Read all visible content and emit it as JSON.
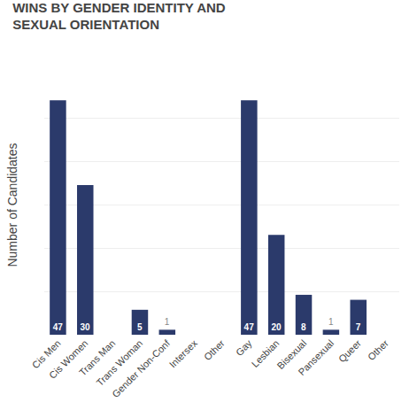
{
  "chart_data": {
    "type": "bar",
    "title": "WINS BY GENDER IDENTITY AND",
    "subtitle": "SEXUAL ORIENTATION",
    "y_label": "Number of Candidates",
    "categories": [
      "Cis Men",
      "Cis Women",
      "Trans Man",
      "Trans Woman",
      "Gender Non-Conf",
      "Intersex",
      "Other",
      "Gay",
      "Lesbian",
      "Bisexual",
      "Pansexual",
      "Queer",
      "Other"
    ],
    "values": [
      47,
      30,
      0,
      5,
      1,
      0,
      0,
      47,
      20,
      8,
      1,
      7,
      0
    ],
    "color": "#2b3a6b",
    "ylim": [
      0,
      52
    ],
    "yticks": [
      0,
      8.666666666666666,
      17.333333333333332,
      26,
      34.666666666666664,
      43.33333333333333,
      52
    ],
    "grid": true,
    "tick_labels": "x",
    "data_labels": true
  }
}
